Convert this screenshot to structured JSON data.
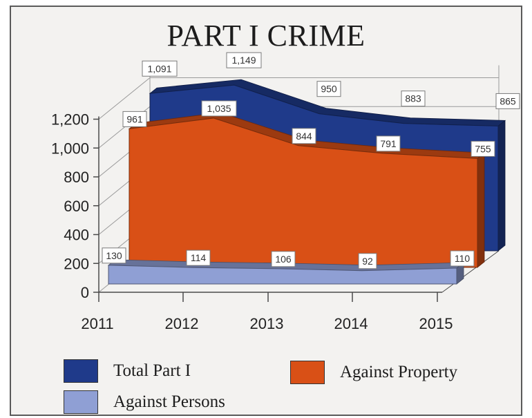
{
  "chart_data": {
    "type": "area",
    "title": "PART I CRIME",
    "categories": [
      "2011",
      "2012",
      "2013",
      "2014",
      "2015"
    ],
    "yticks": [
      "0",
      "200",
      "400",
      "600",
      "800",
      "1,000",
      "1,200"
    ],
    "ylim": [
      0,
      1200
    ],
    "series": [
      {
        "name": "Total Part I",
        "values": [
          1091,
          1149,
          950,
          883,
          865
        ],
        "labels": [
          "1,091",
          "1,149",
          "950",
          "883",
          "865"
        ],
        "color": "#1f3a8a"
      },
      {
        "name": "Against Property",
        "values": [
          961,
          1035,
          844,
          791,
          755
        ],
        "labels": [
          "961",
          "1,035",
          "844",
          "791",
          "755"
        ],
        "color": "#d95016"
      },
      {
        "name": "Against Persons",
        "values": [
          130,
          114,
          106,
          92,
          110
        ],
        "labels": [
          "130",
          "114",
          "106",
          "92",
          "110"
        ],
        "color": "#8f9fd4"
      }
    ],
    "legend_position": "bottom"
  }
}
